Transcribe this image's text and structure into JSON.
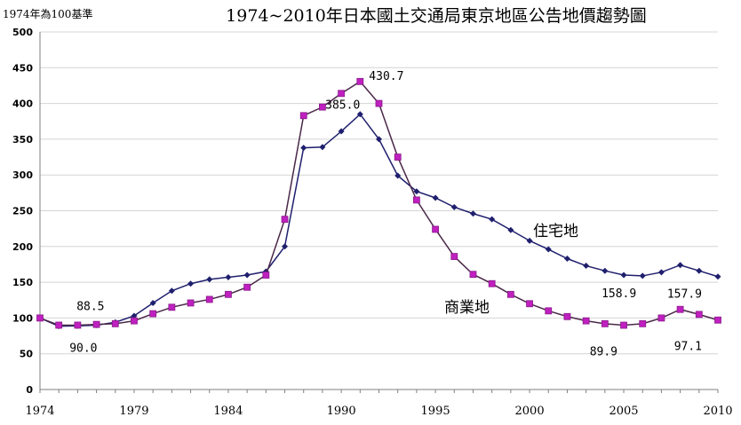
{
  "chart_data": {
    "type": "line",
    "title": "1974~2010年日本國土交通局東京地區公告地價趨勢圖",
    "note": "1974年為100基準",
    "ylim": [
      0,
      500
    ],
    "yticks": [
      0,
      50,
      100,
      150,
      200,
      250,
      300,
      350,
      400,
      450,
      500
    ],
    "xlim": [
      1974,
      2010
    ],
    "xticks": [
      1974,
      1979,
      1984,
      1990,
      1995,
      2000,
      2005,
      2010
    ],
    "grid": true,
    "x": [
      1974,
      1975,
      1976,
      1977,
      1978,
      1979,
      1980,
      1981,
      1982,
      1983,
      1984,
      1985,
      1986,
      1987,
      1988,
      1989,
      1990,
      1991,
      1992,
      1993,
      1994,
      1995,
      1996,
      1997,
      1998,
      1999,
      2000,
      2001,
      2002,
      2003,
      2004,
      2005,
      2006,
      2007,
      2008,
      2009,
      2010
    ],
    "series": [
      {
        "name": "住宅地",
        "color": "#1f1f6e",
        "marker": "diamond",
        "values": [
          100,
          88.5,
          89,
          90,
          94,
          103,
          121,
          138,
          148,
          154,
          157,
          160,
          165,
          200,
          338,
          339,
          361,
          385,
          350,
          299,
          277,
          268,
          255,
          246,
          238,
          223,
          208,
          196,
          183,
          173,
          166,
          160,
          158.9,
          164,
          174,
          166,
          157.9
        ]
      },
      {
        "name": "商業地",
        "color": "#c020c0",
        "marker": "square",
        "values": [
          100,
          90,
          90,
          91,
          92,
          96,
          106,
          115,
          121,
          126,
          133,
          143,
          160,
          238,
          383,
          395,
          414,
          430.7,
          400,
          325,
          265,
          224,
          186,
          161,
          148,
          133,
          120,
          110,
          102,
          96,
          92,
          89.9,
          92,
          100,
          112,
          105,
          97.1
        ]
      }
    ],
    "series_labels": {
      "residential": "住宅地",
      "commercial": "商業地"
    },
    "annotations": [
      {
        "series": 0,
        "year": 1975,
        "text": "88.5"
      },
      {
        "series": 1,
        "year": 1975,
        "text": "90.0"
      },
      {
        "series": 0,
        "year": 1991,
        "text": "385.0"
      },
      {
        "series": 1,
        "year": 1991,
        "text": "430.7"
      },
      {
        "series": 0,
        "year": 2006,
        "text": "158.9"
      },
      {
        "series": 0,
        "year": 2010,
        "text": "157.9"
      },
      {
        "series": 1,
        "year": 2005,
        "text": "89.9"
      },
      {
        "series": 1,
        "year": 2010,
        "text": "97.1"
      }
    ]
  }
}
